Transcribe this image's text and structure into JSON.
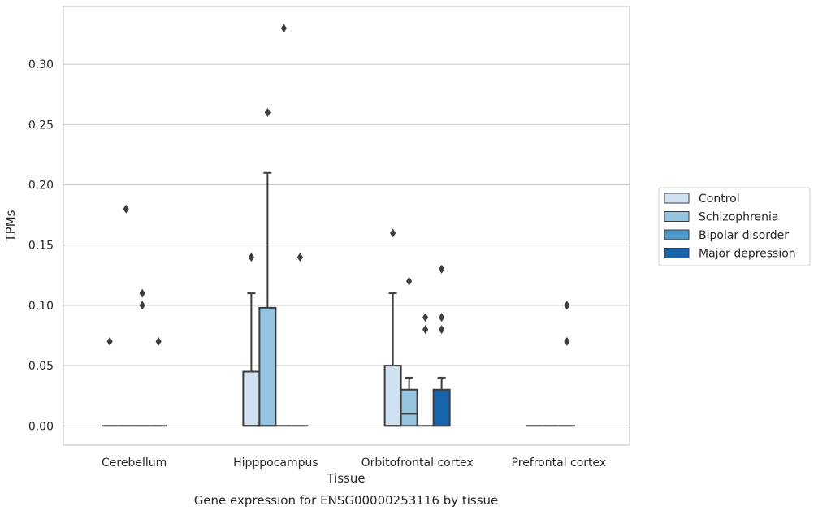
{
  "chart_data": {
    "type": "box",
    "title": "",
    "caption": "Gene expression for ENSG00000253116 by tissue",
    "xlabel": "Tissue",
    "ylabel": "TPMs",
    "ylim": [
      -0.016,
      0.348
    ],
    "yticks": [
      0.0,
      0.05,
      0.1,
      0.15,
      0.2,
      0.25,
      0.3
    ],
    "ytick_labels": [
      "0.00",
      "0.05",
      "0.10",
      "0.15",
      "0.20",
      "0.25",
      "0.30"
    ],
    "grid": "horizontal",
    "legend_position": "right",
    "categories": [
      "Cerebellum",
      "Hipppocampus",
      "Orbitofrontal cortex",
      "Prefrontal cortex"
    ],
    "series": [
      {
        "name": "Control",
        "color": "#d0e1f2",
        "boxes": [
          {
            "q1": 0,
            "median": 0,
            "q3": 0,
            "whislo": 0,
            "whishi": 0,
            "fliers": [
              0.07
            ]
          },
          {
            "q1": 0,
            "median": 0,
            "q3": 0.045,
            "whislo": 0,
            "whishi": 0.11,
            "fliers": [
              0.14
            ]
          },
          {
            "q1": 0,
            "median": 0,
            "q3": 0.05,
            "whislo": 0,
            "whishi": 0.11,
            "fliers": [
              0.16
            ]
          },
          {
            "q1": 0,
            "median": 0,
            "q3": 0,
            "whislo": 0,
            "whishi": 0,
            "fliers": []
          }
        ]
      },
      {
        "name": "Schizophrenia",
        "color": "#94c4df",
        "boxes": [
          {
            "q1": 0,
            "median": 0,
            "q3": 0,
            "whislo": 0,
            "whishi": 0,
            "fliers": [
              0.18
            ]
          },
          {
            "q1": 0,
            "median": 0,
            "q3": 0.098,
            "whislo": 0,
            "whishi": 0.21,
            "fliers": [
              0.26
            ]
          },
          {
            "q1": 0,
            "median": 0.01,
            "q3": 0.03,
            "whislo": 0,
            "whishi": 0.04,
            "fliers": [
              0.12
            ]
          },
          {
            "q1": 0,
            "median": 0,
            "q3": 0,
            "whislo": 0,
            "whishi": 0,
            "fliers": []
          }
        ]
      },
      {
        "name": "Bipolar disorder",
        "color": "#4a98c9",
        "boxes": [
          {
            "q1": 0,
            "median": 0,
            "q3": 0,
            "whislo": 0,
            "whishi": 0,
            "fliers": [
              0.1,
              0.11
            ]
          },
          {
            "q1": 0,
            "median": 0,
            "q3": 0,
            "whislo": 0,
            "whishi": 0,
            "fliers": [
              0.33
            ]
          },
          {
            "q1": 0,
            "median": 0,
            "q3": 0,
            "whislo": 0,
            "whishi": 0,
            "fliers": [
              0.08,
              0.09
            ]
          },
          {
            "q1": 0,
            "median": 0,
            "q3": 0,
            "whislo": 0,
            "whishi": 0,
            "fliers": [
              0.07,
              0.1
            ]
          }
        ]
      },
      {
        "name": "Major depression",
        "color": "#1764ab",
        "boxes": [
          {
            "q1": 0,
            "median": 0,
            "q3": 0,
            "whislo": 0,
            "whishi": 0,
            "fliers": [
              0.07
            ]
          },
          {
            "q1": 0,
            "median": 0,
            "q3": 0,
            "whislo": 0,
            "whishi": 0,
            "fliers": [
              0.14
            ]
          },
          {
            "q1": 0,
            "median": 0,
            "q3": 0.03,
            "whislo": 0,
            "whishi": 0.04,
            "fliers": [
              0.08,
              0.09,
              0.13
            ]
          },
          null
        ]
      }
    ]
  }
}
